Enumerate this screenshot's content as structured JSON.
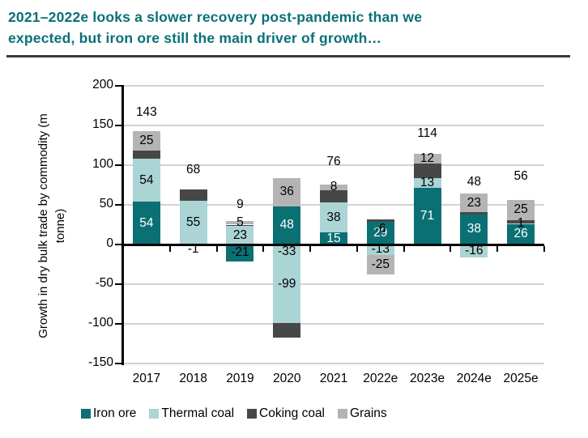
{
  "title": {
    "line1": "2021–2022e looks a slower recovery post-pandemic than we",
    "line2": "expected, but iron ore still the main driver of growth…",
    "color": "#0a7078"
  },
  "chart_data": {
    "type": "bar",
    "stacked": true,
    "ylabel_lines": [
      "Growth in dry bulk trade by commodity (m",
      "tonne)"
    ],
    "ylim": [
      -150,
      200
    ],
    "yticks": [
      200,
      150,
      100,
      50,
      0,
      -50,
      -100,
      -150
    ],
    "grid": true,
    "legend_position": "bottom",
    "categories": [
      "2017",
      "2018",
      "2019",
      "2020",
      "2021",
      "2022e",
      "2023e",
      "2024e",
      "2025e"
    ],
    "series_order": [
      "Iron ore",
      "Thermal coal",
      "Coking coal",
      "Grains"
    ],
    "series_colors": {
      "Iron ore": "#0b7074",
      "Thermal coal": "#abd4d5",
      "Coking coal": "#474747",
      "Grains": "#b4b4b4"
    },
    "series": [
      {
        "name": "Iron ore",
        "values": [
          54,
          -1,
          -21,
          48,
          15,
          29,
          71,
          38,
          26
        ]
      },
      {
        "name": "Thermal coal",
        "values": [
          54,
          55,
          23,
          -99,
          38,
          -13,
          13,
          -16,
          1
        ]
      },
      {
        "name": "Coking coal",
        "values": [
          10,
          14,
          2,
          -18,
          15,
          3,
          18,
          3,
          4
        ]
      },
      {
        "name": "Grains",
        "values": [
          25,
          0,
          5,
          36,
          8,
          -25,
          12,
          23,
          25
        ]
      }
    ],
    "totals": [
      143,
      68,
      9,
      -33,
      76,
      -6,
      114,
      48,
      56
    ],
    "bars": [
      {
        "category": "2017",
        "values": {
          "Iron ore": 54,
          "Thermal coal": 54,
          "Coking coal": 10,
          "Grains": 25
        },
        "total": 143,
        "labels": [
          {
            "series": "Iron ore",
            "text": "54",
            "white": true
          },
          {
            "series": "Thermal coal",
            "text": "54"
          },
          {
            "series": "Grains",
            "text": "25"
          },
          {
            "series": "total",
            "text": "143",
            "y": 166
          }
        ]
      },
      {
        "category": "2018",
        "values": {
          "Iron ore": -1,
          "Thermal coal": 55,
          "Coking coal": 14,
          "Grains": 0
        },
        "total": 68,
        "labels": [
          {
            "series": "Iron ore",
            "text": "-1",
            "y": -6
          },
          {
            "series": "Thermal coal",
            "text": "55"
          },
          {
            "series": "total",
            "text": "68",
            "y": 94
          }
        ]
      },
      {
        "category": "2019",
        "values": {
          "Iron ore": -21,
          "Thermal coal": 23,
          "Coking coal": 2,
          "Grains": 5
        },
        "total": 9,
        "labels": [
          {
            "series": "Iron ore",
            "text": "-21"
          },
          {
            "series": "Thermal coal",
            "text": "23"
          },
          {
            "series": "Grains",
            "text": "5"
          },
          {
            "series": "total",
            "text": "9",
            "y": 50
          }
        ]
      },
      {
        "category": "2020",
        "values": {
          "Iron ore": 48,
          "Thermal coal": -99,
          "Coking coal": -18,
          "Grains": 36
        },
        "total": -33,
        "labels": [
          {
            "series": "Iron ore",
            "text": "48",
            "white": true
          },
          {
            "series": "Thermal coal",
            "text": "-99"
          },
          {
            "series": "Grains",
            "text": "36"
          },
          {
            "series": "total",
            "text": "-33",
            "y": -9
          }
        ]
      },
      {
        "category": "2021",
        "values": {
          "Iron ore": 15,
          "Thermal coal": 38,
          "Coking coal": 15,
          "Grains": 8
        },
        "total": 76,
        "labels": [
          {
            "series": "Iron ore",
            "text": "15",
            "white": true
          },
          {
            "series": "Thermal coal",
            "text": "38"
          },
          {
            "series": "Grains",
            "text": "8"
          },
          {
            "series": "total",
            "text": "76",
            "y": 104
          }
        ]
      },
      {
        "category": "2022e",
        "values": {
          "Iron ore": 29,
          "Thermal coal": -13,
          "Coking coal": 3,
          "Grains": -25
        },
        "total": -6,
        "labels": [
          {
            "series": "Iron ore",
            "text": "29",
            "white": true
          },
          {
            "series": "Thermal coal",
            "text": "-13"
          },
          {
            "series": "Grains",
            "text": "-25"
          },
          {
            "series": "total",
            "text": "-6",
            "y": 19
          }
        ]
      },
      {
        "category": "2023e",
        "values": {
          "Iron ore": 71,
          "Thermal coal": 13,
          "Coking coal": 18,
          "Grains": 12
        },
        "total": 114,
        "labels": [
          {
            "series": "Iron ore",
            "text": "71",
            "white": true
          },
          {
            "series": "Thermal coal",
            "text": "13"
          },
          {
            "series": "Grains",
            "text": "12"
          },
          {
            "series": "total",
            "text": "114",
            "y": 140
          }
        ]
      },
      {
        "category": "2024e",
        "values": {
          "Iron ore": 38,
          "Thermal coal": -16,
          "Coking coal": 3,
          "Grains": 23
        },
        "total": 48,
        "labels": [
          {
            "series": "Iron ore",
            "text": "38",
            "white": true
          },
          {
            "series": "Thermal coal",
            "text": "-16"
          },
          {
            "series": "Grains",
            "text": "23"
          },
          {
            "series": "total",
            "text": "48",
            "y": 79
          }
        ]
      },
      {
        "category": "2025e",
        "values": {
          "Iron ore": 26,
          "Thermal coal": 1,
          "Coking coal": 4,
          "Grains": 25
        },
        "total": 56,
        "labels": [
          {
            "series": "Iron ore",
            "text": "26",
            "white": true
          },
          {
            "series": "Thermal coal",
            "text": "1"
          },
          {
            "series": "Grains",
            "text": "25"
          },
          {
            "series": "total",
            "text": "56",
            "y": 86
          }
        ]
      }
    ]
  },
  "legend": {
    "items": [
      "Iron ore",
      "Thermal coal",
      "Coking coal",
      "Grains"
    ]
  }
}
